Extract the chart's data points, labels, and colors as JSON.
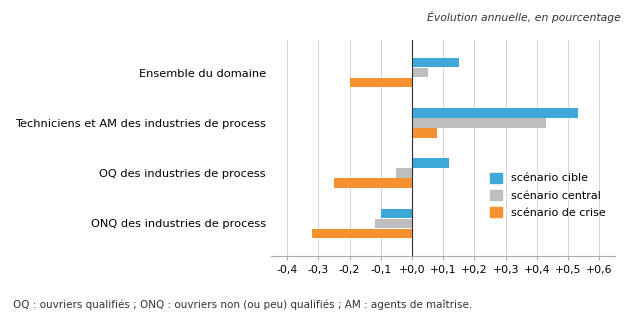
{
  "categories": [
    "ONQ des industries de process",
    "OQ des industries de process",
    "Techniciens et AM des industries de process",
    "Ensemble du domaine"
  ],
  "series": {
    "scénario cible": [
      -0.1,
      0.12,
      0.53,
      0.15
    ],
    "scénario central": [
      -0.12,
      -0.05,
      0.43,
      0.05
    ],
    "scénario de crise": [
      -0.32,
      -0.25,
      0.08,
      -0.2
    ]
  },
  "colors": {
    "scénario cible": "#3EA8D8",
    "scénario central": "#BEBEBE",
    "scénario de crise": "#F5922F"
  },
  "xlim": [
    -0.45,
    0.65
  ],
  "xticks": [
    -0.4,
    -0.3,
    -0.2,
    -0.1,
    0.0,
    0.1,
    0.2,
    0.3,
    0.4,
    0.5,
    0.6
  ],
  "xtick_labels": [
    "-0,4",
    "-0,3",
    "-0,2",
    "-0,1",
    "+0,0",
    "+0,1",
    "+0,2",
    "+0,3",
    "+0,4",
    "+0,5",
    "+0,6"
  ],
  "subtitle": "Évolution annuelle, en pourcentage",
  "footnote": "OQ : ouvriers qualifiés ; ONQ : ouvriers non (ou peu) qualifiés ; AM : agents de maîtrise.",
  "bar_height": 0.2,
  "legend_order": [
    "scénario cible",
    "scénario central",
    "scénario de crise"
  ]
}
